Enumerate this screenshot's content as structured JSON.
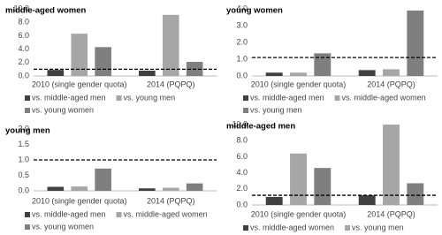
{
  "chart_data": [
    {
      "type": "bar",
      "title": "middle-aged women",
      "categories": [
        "2010 (single gender quota)",
        "2014 (PQPQ)"
      ],
      "series": [
        {
          "name": "vs. middle-aged men",
          "color": "#404040",
          "values": [
            0.9,
            0.8
          ]
        },
        {
          "name": "vs. young men",
          "color": "#a6a6a6",
          "values": [
            6.3,
            9.1
          ]
        },
        {
          "name": "vs. young women",
          "color": "#7f7f7f",
          "values": [
            4.3,
            2.1
          ]
        }
      ],
      "ylim": [
        0,
        10
      ],
      "yticks": [
        {
          "value": 0,
          "label": "0.0"
        },
        {
          "value": 2,
          "label": "2.0"
        },
        {
          "value": 4,
          "label": "4.0"
        },
        {
          "value": 6,
          "label": "6.0"
        },
        {
          "value": 8,
          "label": "8.0"
        },
        {
          "value": 10,
          "label": "10.0"
        }
      ],
      "reference_line": 1
    },
    {
      "type": "bar",
      "title": "young women",
      "categories": [
        "2010 (single gender quota)",
        "2014 (PQPQ)"
      ],
      "series": [
        {
          "name": "vs. middle-aged men",
          "color": "#404040",
          "values": [
            0.2,
            0.35
          ]
        },
        {
          "name": "vs. middle-aged women",
          "color": "#a6a6a6",
          "values": [
            0.2,
            0.4
          ]
        },
        {
          "name": "vs. young men",
          "color": "#7f7f7f",
          "values": [
            1.35,
            3.9
          ]
        }
      ],
      "ylim": [
        0,
        4
      ],
      "yticks": [
        {
          "value": 0,
          "label": "0.0"
        },
        {
          "value": 1,
          "label": "1.0"
        },
        {
          "value": 2,
          "label": "2.0"
        },
        {
          "value": 3,
          "label": "3.0"
        },
        {
          "value": 4,
          "label": "4.0"
        }
      ],
      "reference_line": 1.1
    },
    {
      "type": "bar",
      "title": "young men",
      "categories": [
        "2010 (single gender quota)",
        "2014 (PQPQ)"
      ],
      "series": [
        {
          "name": "vs. middle-aged men",
          "color": "#404040",
          "values": [
            0.13,
            0.08
          ]
        },
        {
          "name": "vs. middle-aged women",
          "color": "#a6a6a6",
          "values": [
            0.14,
            0.1
          ]
        },
        {
          "name": "vs. young women",
          "color": "#7f7f7f",
          "values": [
            0.72,
            0.24
          ]
        }
      ],
      "ylim": [
        0,
        2
      ],
      "yticks": [
        {
          "value": 0,
          "label": "0.0"
        },
        0.5,
        {
          "value": 1,
          "label": "1.0"
        },
        1.5,
        {
          "value": 2,
          "label": "2.0"
        }
      ],
      "reference_line": 1
    },
    {
      "type": "bar",
      "title": "middle-aged men",
      "categories": [
        "2010 (single gender quota)",
        "2014 (PQPQ)"
      ],
      "series": [
        {
          "name": "vs. middle-aged women",
          "color": "#404040",
          "values": [
            1.0,
            1.2
          ]
        },
        {
          "name": "vs. young men",
          "color": "#a6a6a6",
          "values": [
            6.4,
            10.0
          ]
        },
        {
          "name": "vs. young women",
          "color": "#7f7f7f",
          "values": [
            4.6,
            2.7
          ]
        }
      ],
      "ylim": [
        0,
        10
      ],
      "yticks": [
        {
          "value": 0,
          "label": "0.0"
        },
        {
          "value": 2,
          "label": "2.0"
        },
        {
          "value": 4,
          "label": "4.0"
        },
        {
          "value": 6,
          "label": "6.0"
        },
        {
          "value": 8,
          "label": "8.0"
        },
        {
          "value": 10,
          "label": "10.0"
        }
      ],
      "reference_line": 1.2
    }
  ]
}
